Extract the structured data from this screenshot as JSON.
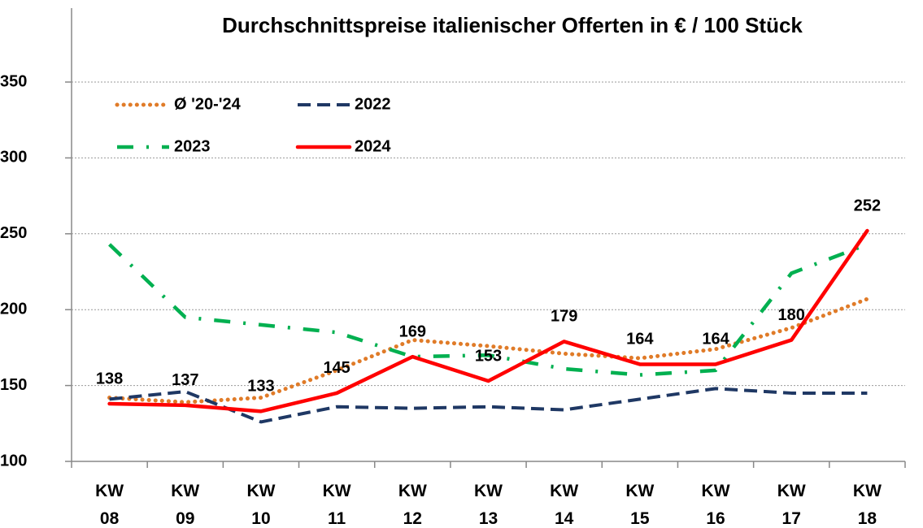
{
  "chart_data": {
    "type": "line",
    "title": "Durchschnittspreise italienischer Offerten in € / 100 Stück",
    "categories": [
      "KW 08",
      "KW 09",
      "KW 10",
      "KW 11",
      "KW 12",
      "KW 13",
      "KW 14",
      "KW 15",
      "KW 16",
      "KW 17",
      "KW 18"
    ],
    "series": [
      {
        "name": "Ø '20-'24",
        "color": "#e07b28",
        "dash": "dotted",
        "values": [
          142,
          139,
          142,
          160,
          180,
          176,
          171,
          168,
          174,
          188,
          207
        ]
      },
      {
        "name": "2022",
        "color": "#1f3864",
        "dash": "dashed",
        "values": [
          141,
          146,
          126,
          136,
          135,
          136,
          134,
          141,
          148,
          145,
          145
        ]
      },
      {
        "name": "2023",
        "color": "#00b050",
        "dash": "dashdot",
        "values": [
          243,
          195,
          190,
          185,
          169,
          170,
          161,
          157,
          160,
          224,
          243
        ]
      },
      {
        "name": "2024",
        "color": "#ff0000",
        "dash": "solid",
        "data_labels": true,
        "values": [
          138,
          137,
          133,
          145,
          169,
          153,
          179,
          164,
          164,
          180,
          252
        ]
      }
    ],
    "ylim": [
      100,
      350
    ],
    "yticks": [
      100,
      150,
      200,
      250,
      300,
      350
    ],
    "grid": true,
    "legend": "upper left"
  }
}
